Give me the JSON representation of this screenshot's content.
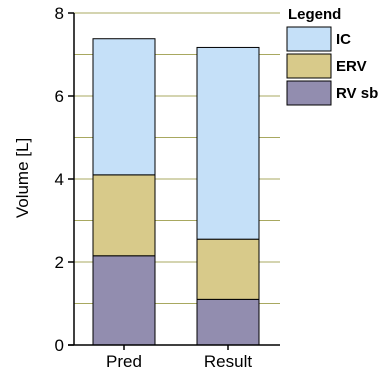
{
  "chart_data": {
    "type": "bar",
    "stacked": true,
    "categories": [
      "Pred",
      "Result"
    ],
    "series": [
      {
        "name": "RV sb",
        "values": [
          2.15,
          1.1
        ],
        "color": "#928daf"
      },
      {
        "name": "ERV",
        "values": [
          1.95,
          1.45
        ],
        "color": "#d8ca8a"
      },
      {
        "name": "IC",
        "values": [
          3.28,
          4.62
        ],
        "color": "#c5e0f8"
      }
    ],
    "title": "",
    "xlabel": "",
    "ylabel": "Volume [L]",
    "ylim": [
      0,
      8
    ],
    "yticks": [
      0,
      2,
      4,
      6,
      8
    ],
    "grid": "horizontal",
    "grid_color": "#a8a860",
    "legend": {
      "title": "Legend",
      "placement": "right",
      "items": [
        "IC",
        "ERV",
        "RV sb"
      ]
    }
  }
}
